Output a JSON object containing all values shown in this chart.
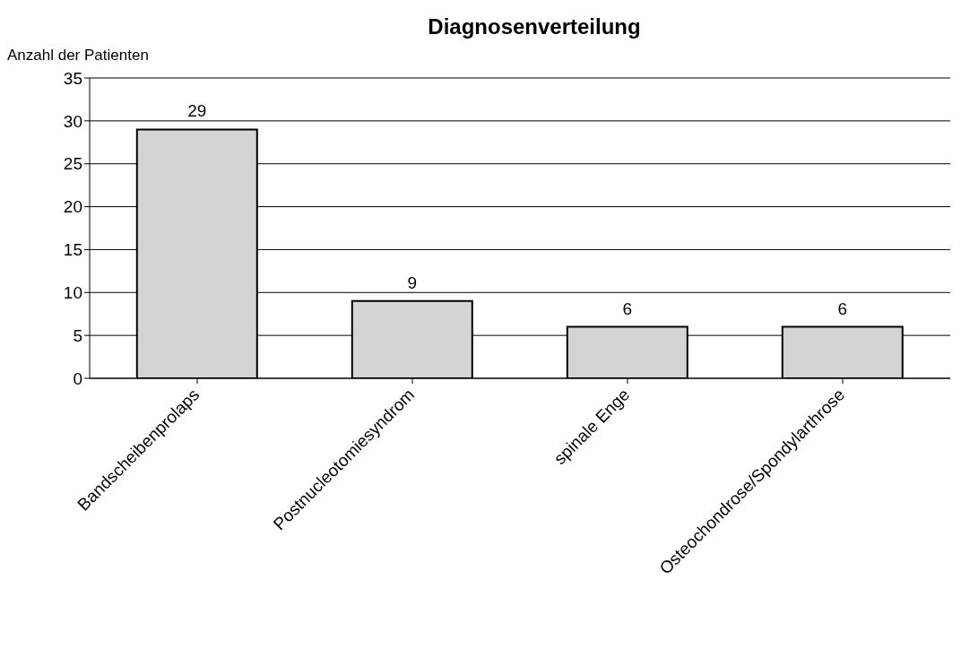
{
  "chart_data": {
    "type": "bar",
    "title": "Diagnosenverteilung",
    "ylabel": "Anzahl der Patienten",
    "categories": [
      "Bandscheibenprolaps",
      "Postnucleotomiesyndrom",
      "spinale Enge",
      "Osteochondrose/Spondylarthrose"
    ],
    "values": [
      29,
      9,
      6,
      6
    ],
    "color": "#d4d4d4",
    "ylim": [
      0,
      35
    ],
    "yticks": [
      0,
      5,
      10,
      15,
      20,
      25,
      30,
      35
    ],
    "grid": "y",
    "data_labels": true
  }
}
